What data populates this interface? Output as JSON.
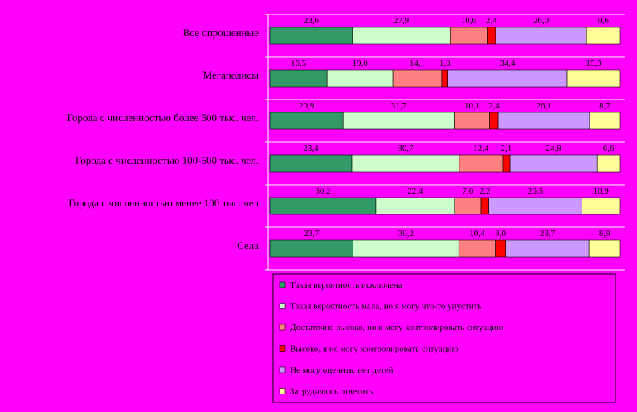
{
  "chart_data": {
    "type": "bar",
    "orientation": "horizontal",
    "stacked": true,
    "normalized": true,
    "categories": [
      "Все опрошенные",
      "Мегаполисы",
      "Города с численностью более 500 тыс. чел.",
      "Города с численностью 100-500 тыс. чел.",
      "Города с численностью менее 100 тыс. чел",
      "Села"
    ],
    "series": [
      {
        "name": "Такая вероятность исключена",
        "color": "#339966",
        "values": [
          23.6,
          16.5,
          20.9,
          23.4,
          30.2,
          23.7
        ],
        "labels": [
          "23,6",
          "16,5",
          "20,9",
          "23,4",
          "30,2",
          "23,7"
        ]
      },
      {
        "name": "Такая вероятность мала, но я могу что-то упустить",
        "color": "#CCFFCC",
        "values": [
          27.9,
          19.0,
          31.7,
          30.7,
          22.4,
          30.2
        ],
        "labels": [
          "27,9",
          "19,0",
          "31,7",
          "30,7",
          "22,4",
          "30,2"
        ]
      },
      {
        "name": "Достаточно высоко, но я могу контролировать ситуацию",
        "color": "#FF8080",
        "values": [
          10.6,
          14.1,
          10.1,
          12.4,
          7.6,
          10.4
        ],
        "labels": [
          "10,6",
          "14,1",
          "10,1",
          "12,4",
          "7,6",
          "10,4"
        ]
      },
      {
        "name": "Высоко, я не могу контролировать ситуацию",
        "color": "#FF0000",
        "values": [
          2.4,
          1.8,
          2.4,
          2.1,
          2.2,
          3.0
        ],
        "labels": [
          "2,4",
          "1,8",
          "2,4",
          "2,1",
          "2,2",
          "3,0"
        ]
      },
      {
        "name": "Не могу оценить, нет детей",
        "color": "#CC99FF",
        "values": [
          26.0,
          34.4,
          26.1,
          24.8,
          26.5,
          23.7
        ],
        "labels": [
          "26,0",
          "34,4",
          "26,1",
          "24,8",
          "26,5",
          "23,7"
        ]
      },
      {
        "name": "Затрудняюсь ответить",
        "color": "#FFFF99",
        "values": [
          9.6,
          15.3,
          8.7,
          6.6,
          10.9,
          8.9
        ],
        "labels": [
          "9,6",
          "15,3",
          "8,7",
          "6,6",
          "10,9",
          "8,9"
        ]
      }
    ],
    "legend": "bottom-right",
    "grid": false
  },
  "colors": {
    "background": "#FF00FF",
    "plot_border": "#FFFFFF",
    "bar_stroke": "#000000"
  }
}
